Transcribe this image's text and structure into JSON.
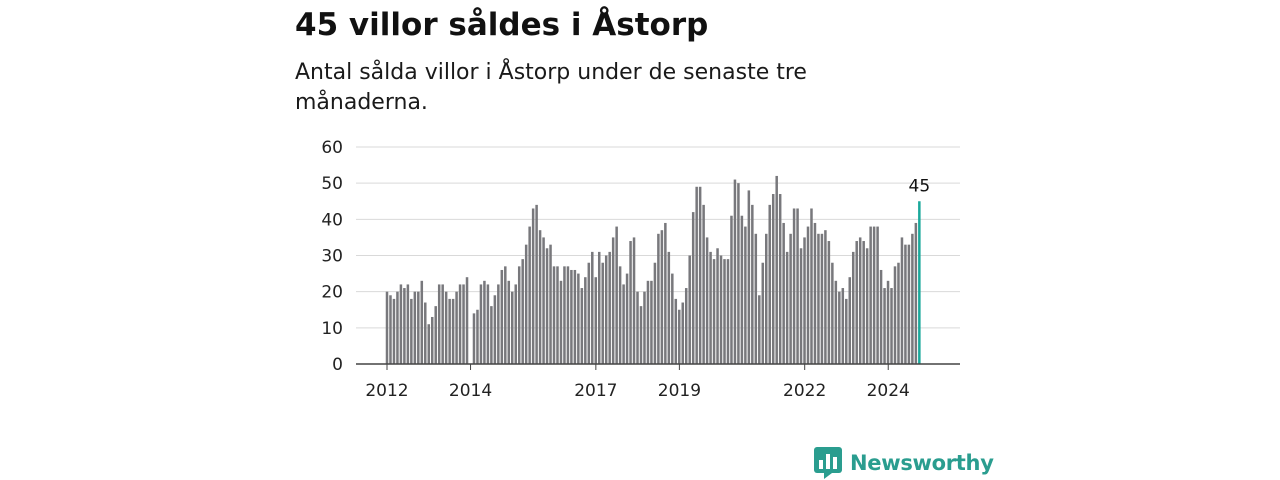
{
  "header": {
    "title": "45 villor såldes i Åstorp",
    "subtitle": "Antal sålda villor i Åstorp under de senaste tre månaderna."
  },
  "chart_data": {
    "type": "bar",
    "title": "45 villor såldes i Åstorp",
    "subtitle": "Antal sålda villor i Åstorp under de senaste tre månaderna.",
    "xlabel": "",
    "ylabel": "",
    "ylim": [
      0,
      60
    ],
    "yticks": [
      0,
      10,
      20,
      30,
      40,
      50,
      60
    ],
    "grid": true,
    "legend": "none",
    "x_range": [
      2012.0,
      2025.0
    ],
    "x_start": 2012.0,
    "x_step": 0.0833,
    "x_tick_labels": [
      {
        "x": 2012,
        "label": "2012"
      },
      {
        "x": 2014,
        "label": "2014"
      },
      {
        "x": 2017,
        "label": "2017"
      },
      {
        "x": 2019,
        "label": "2019"
      },
      {
        "x": 2022,
        "label": "2022"
      },
      {
        "x": 2024,
        "label": "2024"
      }
    ],
    "values": [
      20,
      19,
      18,
      20,
      22,
      21,
      22,
      18,
      20,
      20,
      23,
      17,
      11,
      13,
      16,
      22,
      22,
      20,
      18,
      18,
      20,
      22,
      22,
      24,
      0,
      14,
      15,
      22,
      23,
      22,
      16,
      19,
      22,
      26,
      27,
      23,
      20,
      22,
      27,
      29,
      33,
      38,
      43,
      44,
      37,
      35,
      32,
      33,
      27,
      27,
      23,
      27,
      27,
      26,
      26,
      25,
      21,
      24,
      28,
      31,
      24,
      31,
      28,
      30,
      31,
      35,
      38,
      27,
      22,
      25,
      34,
      35,
      20,
      16,
      20,
      23,
      23,
      28,
      36,
      37,
      39,
      31,
      25,
      18,
      15,
      17,
      21,
      30,
      42,
      49,
      49,
      44,
      35,
      31,
      29,
      32,
      30,
      29,
      29,
      41,
      51,
      50,
      41,
      38,
      48,
      44,
      36,
      19,
      28,
      36,
      44,
      47,
      52,
      47,
      39,
      31,
      36,
      43,
      43,
      32,
      35,
      38,
      43,
      39,
      36,
      36,
      37,
      34,
      28,
      23,
      20,
      21,
      18,
      24,
      31,
      34,
      35,
      34,
      32,
      38,
      38,
      38,
      26,
      21,
      23,
      21,
      27,
      28,
      35,
      33,
      33,
      36,
      39,
      45
    ],
    "highlight": {
      "index": 153,
      "value": 45,
      "label": "45"
    },
    "colors": {
      "bar": "#78787c",
      "highlight": "#1ba89b",
      "grid": "#d9d9d9",
      "axis": "#444444"
    }
  },
  "brand": {
    "name": "Newsworthy",
    "icon": "bar-chart-speech-bubble-icon",
    "color": "#2a9d8f"
  }
}
